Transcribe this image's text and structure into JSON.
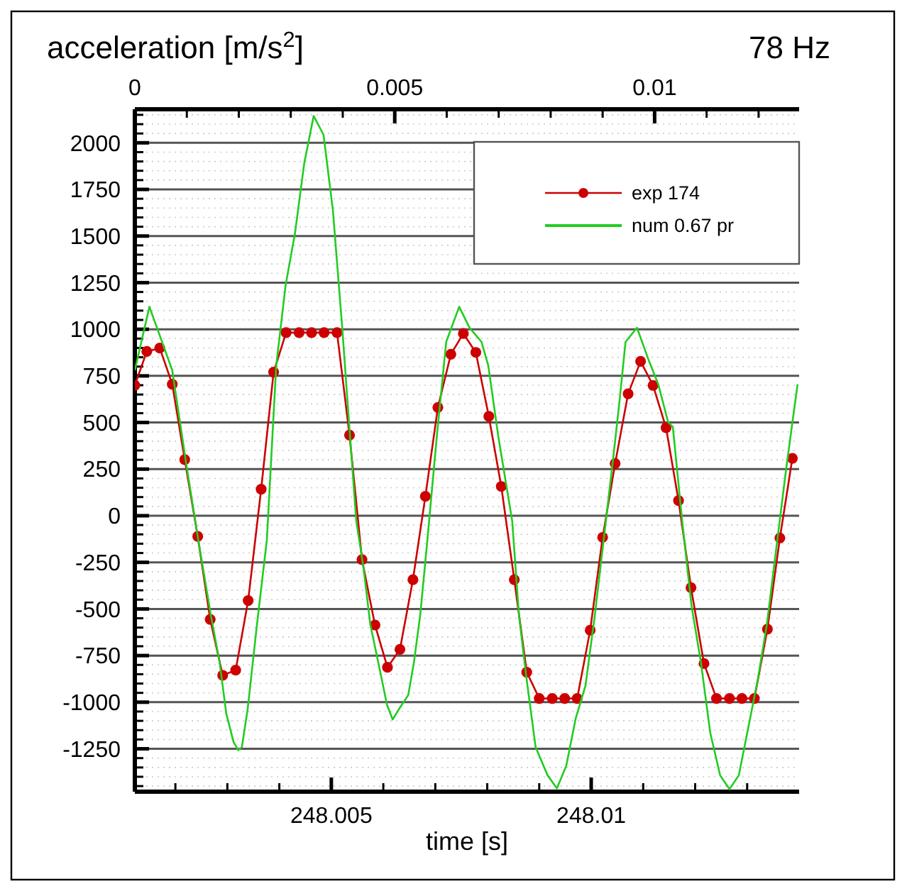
{
  "chart_data": {
    "type": "line",
    "title": "acceleration [m/s$^{2}$]",
    "subtitle": "78 Hz",
    "xlabel": "time [s]",
    "xlim": [
      248.00122,
      248.014
    ],
    "xticks": [
      {
        "value": 248.002,
        "label": null
      },
      {
        "value": 248.003,
        "label": null
      },
      {
        "value": 248.004,
        "label": null
      },
      248.005,
      {
        "value": 248.006,
        "label": null
      },
      {
        "value": 248.007,
        "label": null
      },
      {
        "value": 248.008,
        "label": null
      },
      {
        "value": 248.009,
        "label": null
      },
      248.01,
      {
        "value": 248.011,
        "label": null
      },
      {
        "value": 248.012,
        "label": null
      },
      {
        "value": 248.013,
        "label": null
      }
    ],
    "x2lim": [
      0,
      0.01278
    ],
    "x2ticks": [
      0,
      {
        "value": 0.001,
        "label": null
      },
      {
        "value": 0.002,
        "label": null
      },
      {
        "value": 0.003,
        "label": null
      },
      {
        "value": 0.004,
        "label": null
      },
      0.005,
      {
        "value": 0.006,
        "label": null
      },
      {
        "value": 0.007,
        "label": null
      },
      {
        "value": 0.008,
        "label": null
      },
      {
        "value": 0.009,
        "label": null
      },
      0.01,
      {
        "value": 0.011,
        "label": null
      },
      {
        "value": 0.012,
        "label": null
      }
    ],
    "ylim": [
      -1480,
      2180
    ],
    "yticks": [
      {
        "value": -1450,
        "label": null
      },
      {
        "value": -1400,
        "label": null
      },
      {
        "value": -1350,
        "label": null
      },
      {
        "value": -1300,
        "label": null
      },
      -1250,
      {
        "value": -1200,
        "label": null
      },
      {
        "value": -1150,
        "label": null
      },
      {
        "value": -1100,
        "label": null
      },
      {
        "value": -1050,
        "label": null
      },
      -1000,
      {
        "value": -950,
        "label": null
      },
      {
        "value": -900,
        "label": null
      },
      {
        "value": -850,
        "label": null
      },
      {
        "value": -800,
        "label": null
      },
      -750,
      {
        "value": -700,
        "label": null
      },
      {
        "value": -650,
        "label": null
      },
      {
        "value": -600,
        "label": null
      },
      {
        "value": -550,
        "label": null
      },
      -500,
      {
        "value": -450,
        "label": null
      },
      {
        "value": -400,
        "label": null
      },
      {
        "value": -350,
        "label": null
      },
      {
        "value": -300,
        "label": null
      },
      -250,
      {
        "value": -200,
        "label": null
      },
      {
        "value": -150,
        "label": null
      },
      {
        "value": -100,
        "label": null
      },
      {
        "value": -50,
        "label": null
      },
      0,
      {
        "value": 50,
        "label": null
      },
      {
        "value": 100,
        "label": null
      },
      {
        "value": 150,
        "label": null
      },
      {
        "value": 200,
        "label": null
      },
      250,
      {
        "value": 300,
        "label": null
      },
      {
        "value": 350,
        "label": null
      },
      {
        "value": 400,
        "label": null
      },
      {
        "value": 450,
        "label": null
      },
      500,
      {
        "value": 550,
        "label": null
      },
      {
        "value": 600,
        "label": null
      },
      {
        "value": 650,
        "label": null
      },
      {
        "value": 700,
        "label": null
      },
      750,
      {
        "value": 800,
        "label": null
      },
      {
        "value": 850,
        "label": null
      },
      {
        "value": 900,
        "label": null
      },
      {
        "value": 950,
        "label": null
      },
      1000,
      {
        "value": 1050,
        "label": null
      },
      {
        "value": 1100,
        "label": null
      },
      {
        "value": 1150,
        "label": null
      },
      {
        "value": 1200,
        "label": null
      },
      1250,
      {
        "value": 1300,
        "label": null
      },
      {
        "value": 1350,
        "label": null
      },
      {
        "value": 1400,
        "label": null
      },
      {
        "value": 1450,
        "label": null
      },
      1500,
      {
        "value": 1550,
        "label": null
      },
      {
        "value": 1600,
        "label": null
      },
      {
        "value": 1650,
        "label": null
      },
      {
        "value": 1700,
        "label": null
      },
      1750,
      {
        "value": 1800,
        "label": null
      },
      {
        "value": 1850,
        "label": null
      },
      {
        "value": 1900,
        "label": null
      },
      {
        "value": 1950,
        "label": null
      },
      2000,
      {
        "value": 2050,
        "label": null
      },
      {
        "value": 2100,
        "label": null
      },
      {
        "value": 2150,
        "label": null
      }
    ],
    "grid": "y",
    "legend": "top right",
    "series": [
      {
        "name": "exp 174",
        "color": "#cc0000",
        "marker": "circle",
        "x": [
          248.00122,
          248.00145,
          248.0017,
          248.00194,
          248.00218,
          248.00243,
          248.00267,
          248.00291,
          248.00316,
          248.0034,
          248.00365,
          248.00389,
          248.00413,
          248.00438,
          248.00462,
          248.00486,
          248.00511,
          248.00535,
          248.00559,
          248.00584,
          248.00608,
          248.00632,
          248.00657,
          248.00681,
          248.00705,
          248.0073,
          248.00754,
          248.00778,
          248.00803,
          248.00827,
          248.00852,
          248.00876,
          248.009,
          248.00925,
          248.00949,
          248.00973,
          248.00998,
          248.01022,
          248.01046,
          248.01071,
          248.01095,
          248.01119,
          248.01144,
          248.01168,
          248.01192,
          248.01217,
          248.01241,
          248.01266,
          248.0129,
          248.01314,
          248.01339,
          248.01363,
          248.01387
        ],
        "values": [
          700,
          881,
          899,
          705,
          301,
          -111,
          -556,
          -856,
          -828,
          -455,
          142,
          770,
          982,
          982,
          982,
          982,
          982,
          432,
          -235,
          -586,
          -813,
          -717,
          -343,
          104,
          581,
          866,
          977,
          876,
          533,
          157,
          -343,
          -839,
          -980,
          -980,
          -980,
          -980,
          -614,
          -116,
          280,
          654,
          828,
          699,
          472,
          81,
          -386,
          -793,
          -980,
          -980,
          -980,
          -980,
          -608,
          -119,
          308
        ]
      },
      {
        "name": "num 0.67 pr",
        "color": "#22cc22",
        "marker": "none",
        "x": [
          248.00122,
          248.0015,
          248.00194,
          248.00221,
          248.00244,
          248.00268,
          248.00285,
          248.00298,
          248.00312,
          248.00321,
          248.00328,
          248.00339,
          248.00357,
          248.00376,
          248.00394,
          248.00412,
          248.0043,
          248.00448,
          248.00466,
          248.00485,
          248.00503,
          248.00521,
          248.00534,
          248.00548,
          248.00562,
          248.00575,
          248.00594,
          248.00607,
          248.00618,
          248.0063,
          248.00648,
          248.00659,
          248.00671,
          248.00684,
          248.00703,
          248.00721,
          248.00746,
          248.00766,
          248.00789,
          248.00802,
          248.00821,
          248.00848,
          248.00861,
          248.00875,
          248.00893,
          248.00916,
          248.00934,
          248.00952,
          248.0097,
          248.00989,
          248.01007,
          248.01025,
          248.01043,
          248.01055,
          248.01066,
          248.01088,
          248.01111,
          248.01129,
          248.01148,
          248.01157,
          248.01175,
          248.01193,
          248.01211,
          248.01229,
          248.01248,
          248.01266,
          248.01284,
          248.01302,
          248.0132,
          248.01338,
          248.01357,
          248.01375,
          248.01397
        ],
        "values": [
          780,
          1121,
          780,
          275,
          -129,
          -530,
          -785,
          -1063,
          -1214,
          -1258,
          -1240,
          -1038,
          -583,
          -129,
          805,
          1235,
          1513,
          1892,
          2144,
          2043,
          1639,
          1008,
          502,
          -28,
          -280,
          -583,
          -836,
          -1013,
          -1093,
          -1038,
          -962,
          -785,
          -533,
          -154,
          427,
          932,
          1121,
          1008,
          932,
          805,
          430,
          -28,
          -533,
          -861,
          -1240,
          -1392,
          -1462,
          -1341,
          -1089,
          -911,
          -533,
          -104,
          326,
          629,
          932,
          1008,
          831,
          705,
          502,
          477,
          -28,
          -483,
          -785,
          -1164,
          -1392,
          -1467,
          -1392,
          -1139,
          -886,
          -583,
          -154,
          250,
          705
        ]
      }
    ]
  }
}
